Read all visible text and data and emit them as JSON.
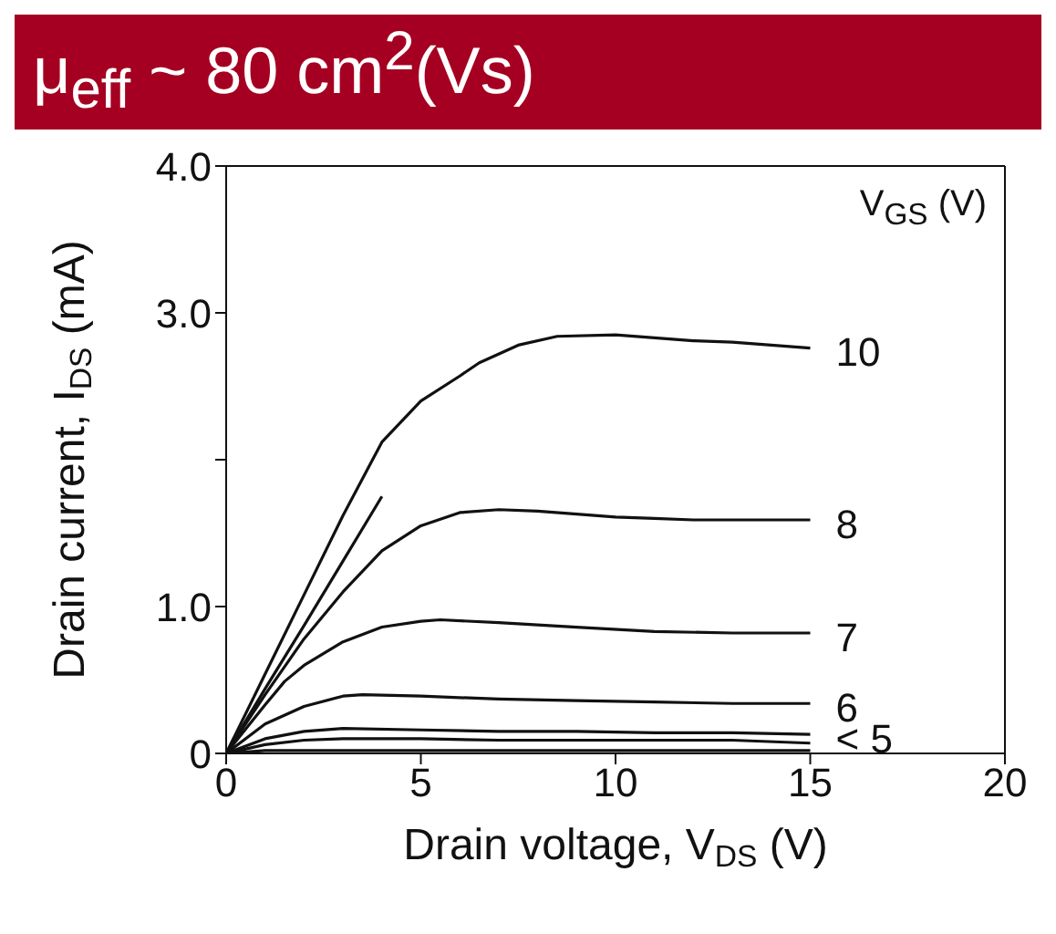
{
  "chart_data": {
    "type": "line",
    "xlabel": "Drain voltage, V$_{DS}$ (V)",
    "ylabel": "Drain current, I$_{DS}$ (mA)",
    "legend_title": "V$_{GS}$ (V)",
    "annotations": [
      "μ$_{eff}$  ~ 80 cm$^{2}$(Vs)"
    ],
    "xlim": [
      0,
      20
    ],
    "xticks": [
      0,
      5,
      10,
      15,
      20
    ],
    "ylim": [
      0,
      4
    ],
    "yticks": [
      0,
      {
        "value": 1,
        "label": "1.0"
      },
      {
        "value": 2,
        "label": null
      },
      {
        "value": 3,
        "label": "3.0"
      },
      {
        "value": 4,
        "label": "4.0"
      }
    ],
    "legend": false,
    "marker": "none",
    "line_style": "solid",
    "series": [
      {
        "name": "10",
        "color": "#111111",
        "x": [
          0,
          1,
          2,
          3,
          4,
          5,
          6,
          6.5,
          7.5,
          8.5,
          10,
          11,
          12,
          13,
          14,
          15
        ],
        "values": [
          0,
          0.54,
          1.08,
          1.62,
          2.12,
          2.4,
          2.57,
          2.66,
          2.78,
          2.84,
          2.85,
          2.83,
          2.81,
          2.8,
          2.78,
          2.76
        ]
      },
      {
        "color": "#111111",
        "x": [
          0,
          1,
          2,
          3,
          4
        ],
        "values": [
          0,
          0.44,
          0.87,
          1.31,
          1.75
        ]
      },
      {
        "name": "8",
        "color": "#111111",
        "x": [
          0,
          1,
          2,
          3,
          4,
          5,
          6,
          7,
          8,
          9,
          10,
          11,
          12,
          13,
          15
        ],
        "values": [
          0,
          0.4,
          0.78,
          1.1,
          1.38,
          1.55,
          1.64,
          1.66,
          1.65,
          1.63,
          1.61,
          1.6,
          1.59,
          1.59,
          1.59
        ]
      },
      {
        "name": "7",
        "color": "#111111",
        "x": [
          0,
          1,
          1.5,
          2,
          3,
          4,
          5,
          5.5,
          7,
          9,
          11,
          13,
          15
        ],
        "values": [
          0,
          0.33,
          0.49,
          0.6,
          0.76,
          0.86,
          0.9,
          0.91,
          0.89,
          0.86,
          0.83,
          0.82,
          0.82
        ]
      },
      {
        "name": "6",
        "color": "#111111",
        "x": [
          0,
          1,
          2,
          3,
          3.5,
          5,
          7,
          9,
          11,
          13,
          15
        ],
        "values": [
          0,
          0.2,
          0.32,
          0.39,
          0.4,
          0.39,
          0.37,
          0.36,
          0.35,
          0.34,
          0.34
        ]
      },
      {
        "name": "< 5",
        "color": "#111111",
        "x": [
          0,
          1,
          2,
          3,
          5,
          7,
          9,
          11,
          13,
          15
        ],
        "values": [
          0,
          0.1,
          0.15,
          0.17,
          0.16,
          0.15,
          0.15,
          0.14,
          0.14,
          0.13
        ]
      },
      {
        "color": "#111111",
        "x": [
          0,
          1,
          2,
          3,
          5,
          7,
          9,
          11,
          13,
          15
        ],
        "values": [
          0,
          0.06,
          0.09,
          0.1,
          0.1,
          0.09,
          0.09,
          0.09,
          0.09,
          0.07
        ]
      },
      {
        "color": "#111111",
        "x": [
          0,
          1,
          3,
          5,
          7,
          9,
          11,
          13,
          15
        ],
        "values": [
          0,
          0.02,
          0.02,
          0.02,
          0.02,
          0.02,
          0.02,
          0.02,
          0.02
        ]
      }
    ]
  }
}
